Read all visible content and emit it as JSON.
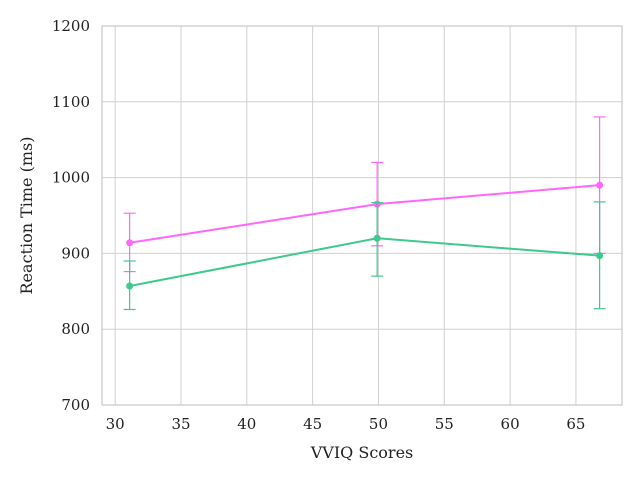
{
  "chart_data": {
    "type": "line",
    "title": "",
    "xlabel": "VVIQ Scores",
    "ylabel": "Reaction Time (ms)",
    "xlim": [
      29,
      68.5
    ],
    "ylim": [
      700,
      1200
    ],
    "xticks": [
      30,
      35,
      40,
      45,
      50,
      55,
      60,
      65
    ],
    "yticks": [
      700,
      800,
      900,
      1000,
      1100,
      1200
    ],
    "grid": true,
    "legend": "none",
    "x": [
      31.1,
      49.9,
      66.8
    ],
    "series": [
      {
        "color": "#ff66ff",
        "values": [
          914,
          965,
          990
        ],
        "error_low": [
          876,
          910,
          900
        ],
        "error_high": [
          953,
          1020,
          1080
        ]
      },
      {
        "color": "#3ec98e",
        "values": [
          857,
          920,
          897
        ],
        "error_low": [
          826,
          870,
          827
        ],
        "error_high": [
          890,
          967,
          968
        ]
      }
    ]
  }
}
